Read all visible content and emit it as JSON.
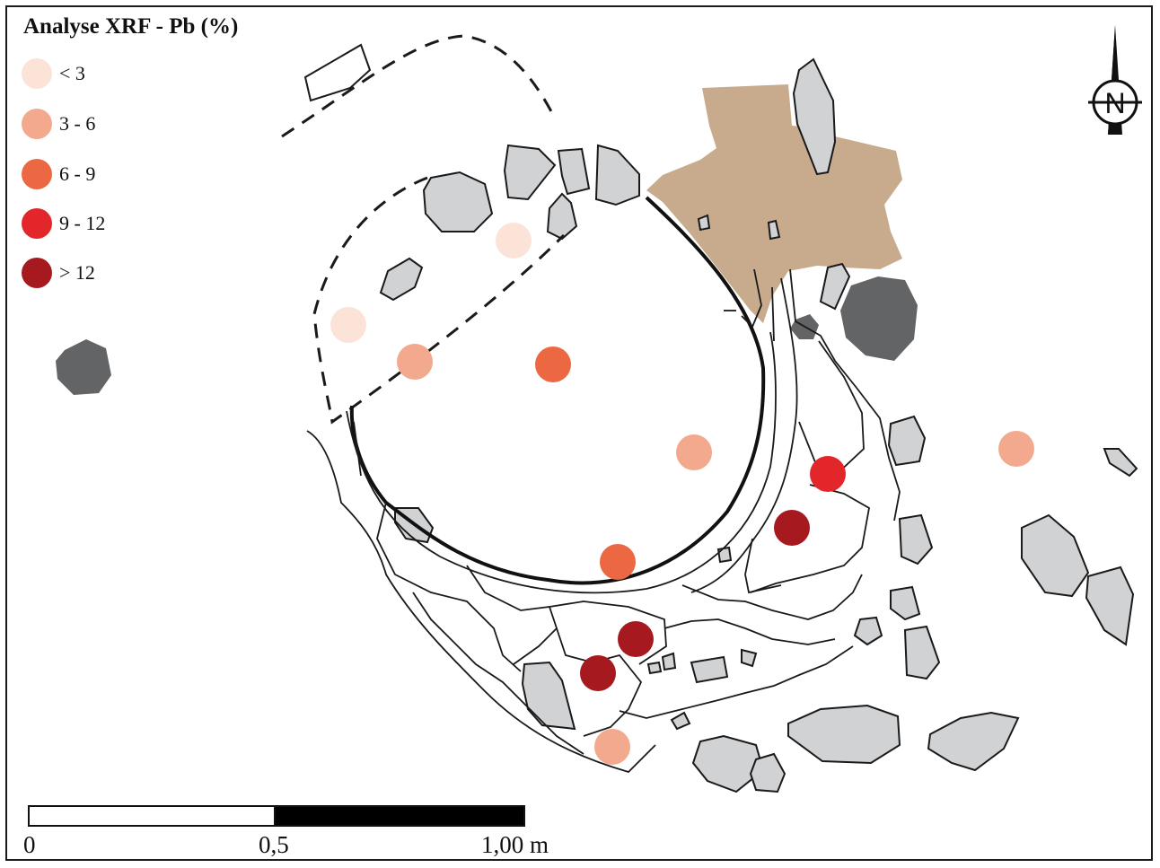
{
  "title": "Analyse XRF - Pb (%)",
  "legend": {
    "classes": [
      {
        "label": "< 3",
        "color": "#fce3d8"
      },
      {
        "label": "3 - 6",
        "color": "#f3a98d"
      },
      {
        "label": "6 - 9",
        "color": "#eb6843"
      },
      {
        "label": "9 - 12",
        "color": "#e2262a"
      },
      {
        "label": "> 12",
        "color": "#a6191e"
      }
    ]
  },
  "north_arrow": {
    "letter": "N",
    "icon": "north-arrow-icon"
  },
  "scale_bar": {
    "labels": [
      "0",
      "0,5",
      "1,00 m"
    ],
    "colors": [
      "#ffffff",
      "#000000"
    ]
  },
  "colors": {
    "stone": "#d1d2d4",
    "dark_stone": "#636466",
    "soil": "#c7ab8c",
    "outline": "#1a1a1a"
  },
  "samples": [
    {
      "class": 0
    },
    {
      "class": 0
    },
    {
      "class": 1
    },
    {
      "class": 2
    },
    {
      "class": 1
    },
    {
      "class": 1
    },
    {
      "class": 3
    },
    {
      "class": 4
    },
    {
      "class": 2
    },
    {
      "class": 4
    },
    {
      "class": 4
    },
    {
      "class": 1
    }
  ]
}
